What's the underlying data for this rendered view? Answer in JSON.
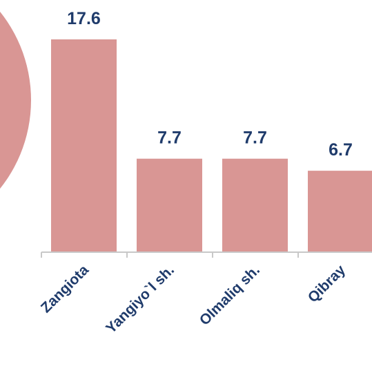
{
  "chart_data": {
    "type": "bar",
    "categories": [
      "Zangiota",
      "Yangiyo`l sh.",
      "Olmaliq sh.",
      "Qibray"
    ],
    "values": [
      17.6,
      7.7,
      7.7,
      6.7
    ],
    "color": "#d99694"
  }
}
